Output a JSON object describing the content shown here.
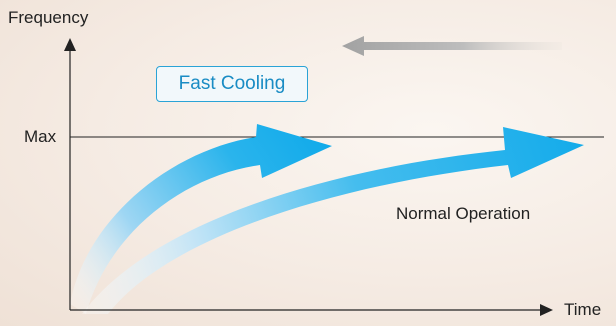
{
  "y_axis_label": "Frequency",
  "x_axis_label": "Time",
  "max_label": "Max",
  "fast_cooling_label": "Fast Cooling",
  "normal_operation_label": "Normal Operation",
  "colors": {
    "arrow_blue": "#1fb0ec",
    "arrow_fade": "#cde8f6",
    "axis": "#222222",
    "gray_arrow": "#a9a9a9",
    "box_border": "#2aa3d6",
    "box_text": "#1a8cc4"
  }
}
